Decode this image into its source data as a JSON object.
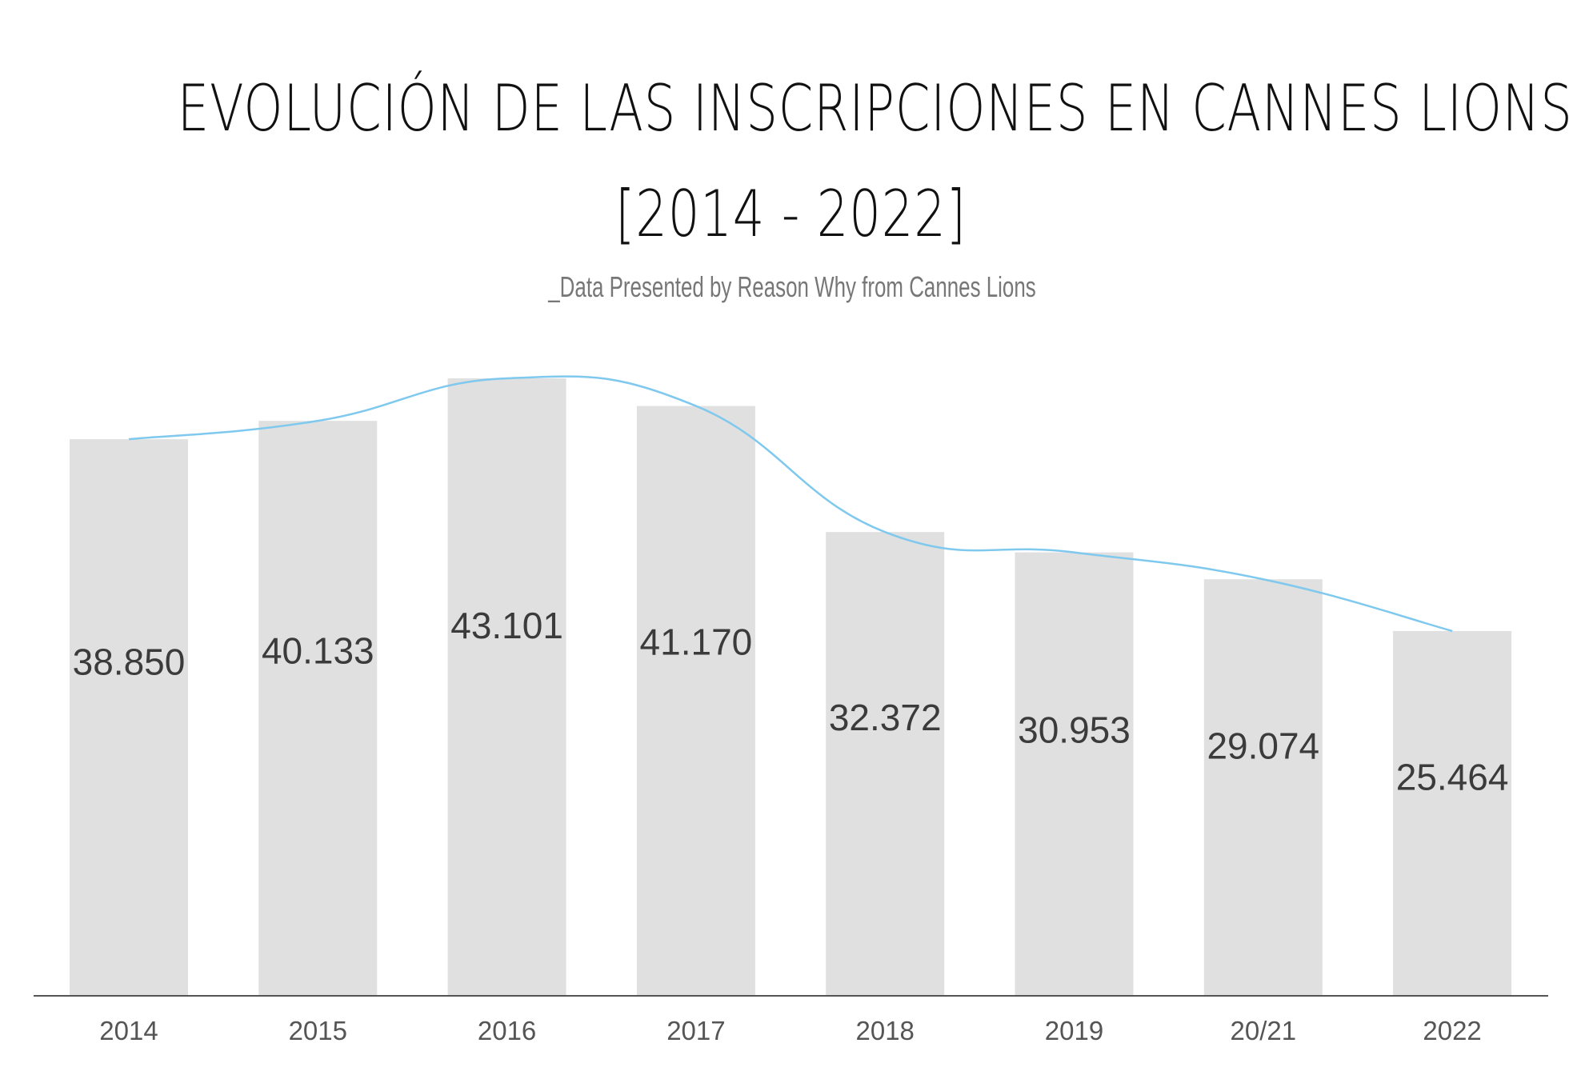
{
  "chart_data": {
    "type": "bar",
    "title_line1": "EVOLUCIÓN DE LAS INSCRIPCIONES EN CANNES LIONS",
    "title_line2": "[2014 - 2022]",
    "subtitle": "_Data Presented by Reason Why from Cannes Lions",
    "categories": [
      "2014",
      "2015",
      "2016",
      "2017",
      "2018",
      "2019",
      "20/21",
      "2022"
    ],
    "values": [
      38850,
      40133,
      43101,
      41170,
      32372,
      30953,
      29074,
      25464
    ],
    "value_labels": [
      "38.850",
      "40.133",
      "43.101",
      "41.170",
      "32.372",
      "30.953",
      "29.074",
      "25.464"
    ],
    "ylim": [
      0,
      43101
    ],
    "grid": false,
    "overlay": "smooth-trend-line",
    "colors": {
      "bar": "#dfe0df",
      "trend": "#7fc8ee",
      "axis": "#555555"
    }
  }
}
